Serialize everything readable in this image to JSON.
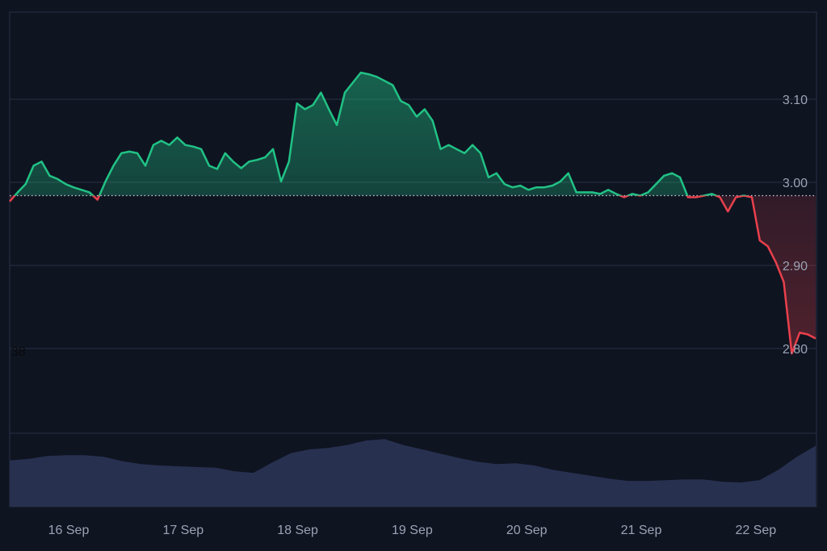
{
  "chart_data": {
    "type": "area",
    "title": "",
    "xlabel": "",
    "ylabel": "",
    "x_start": "15 Sep 11:40",
    "interval_minutes": 100,
    "x_ticks": [
      "16 Sep",
      "17 Sep",
      "18 Sep",
      "19 Sep",
      "20 Sep",
      "21 Sep",
      "22 Sep"
    ],
    "y_ticks": [
      "3.10",
      "3.00",
      "2.90",
      "2.80"
    ],
    "y_tick_values": [
      3.1,
      3.0,
      2.9,
      2.8
    ],
    "ylim": [
      2.7,
      3.2
    ],
    "baseline": 2.984,
    "left_label": "38",
    "grid": true,
    "colors": {
      "up": "#21c285",
      "down": "#e8404c",
      "volume": "#27304f",
      "background": "#0f1421",
      "grid": "#2a3142"
    },
    "price": [
      2.977,
      2.988,
      2.998,
      3.02,
      3.025,
      3.008,
      3.004,
      2.998,
      2.994,
      2.991,
      2.988,
      2.979,
      3.001,
      3.02,
      3.035,
      3.037,
      3.035,
      3.02,
      3.045,
      3.05,
      3.045,
      3.054,
      3.045,
      3.043,
      3.04,
      3.02,
      3.016,
      3.035,
      3.025,
      3.017,
      3.025,
      3.027,
      3.03,
      3.04,
      3.001,
      3.025,
      3.095,
      3.088,
      3.093,
      3.108,
      3.088,
      3.069,
      3.108,
      3.12,
      3.132,
      3.13,
      3.127,
      3.122,
      3.117,
      3.098,
      3.093,
      3.079,
      3.088,
      3.074,
      3.04,
      3.045,
      3.04,
      3.035,
      3.045,
      3.035,
      3.006,
      3.011,
      2.998,
      2.994,
      2.996,
      2.991,
      2.994,
      2.994,
      2.996,
      3.001,
      3.011,
      2.988,
      2.988,
      2.988,
      2.986,
      2.991,
      2.986,
      2.982,
      2.986,
      2.984,
      2.988,
      2.998,
      3.008,
      3.011,
      3.006,
      2.982,
      2.982,
      2.984,
      2.986,
      2.982,
      2.965,
      2.982,
      2.984,
      2.982,
      2.93,
      2.923,
      2.904,
      2.88,
      2.794,
      2.819,
      2.817,
      2.812
    ],
    "volume_relative": [
      0.63,
      0.65,
      0.69,
      0.7,
      0.7,
      0.68,
      0.62,
      0.58,
      0.56,
      0.55,
      0.54,
      0.53,
      0.48,
      0.46,
      0.6,
      0.73,
      0.78,
      0.8,
      0.84,
      0.9,
      0.92,
      0.84,
      0.78,
      0.72,
      0.66,
      0.61,
      0.58,
      0.59,
      0.56,
      0.5,
      0.46,
      0.42,
      0.38,
      0.35,
      0.35,
      0.36,
      0.37,
      0.37,
      0.34,
      0.33,
      0.36,
      0.5,
      0.68,
      0.83
    ]
  }
}
